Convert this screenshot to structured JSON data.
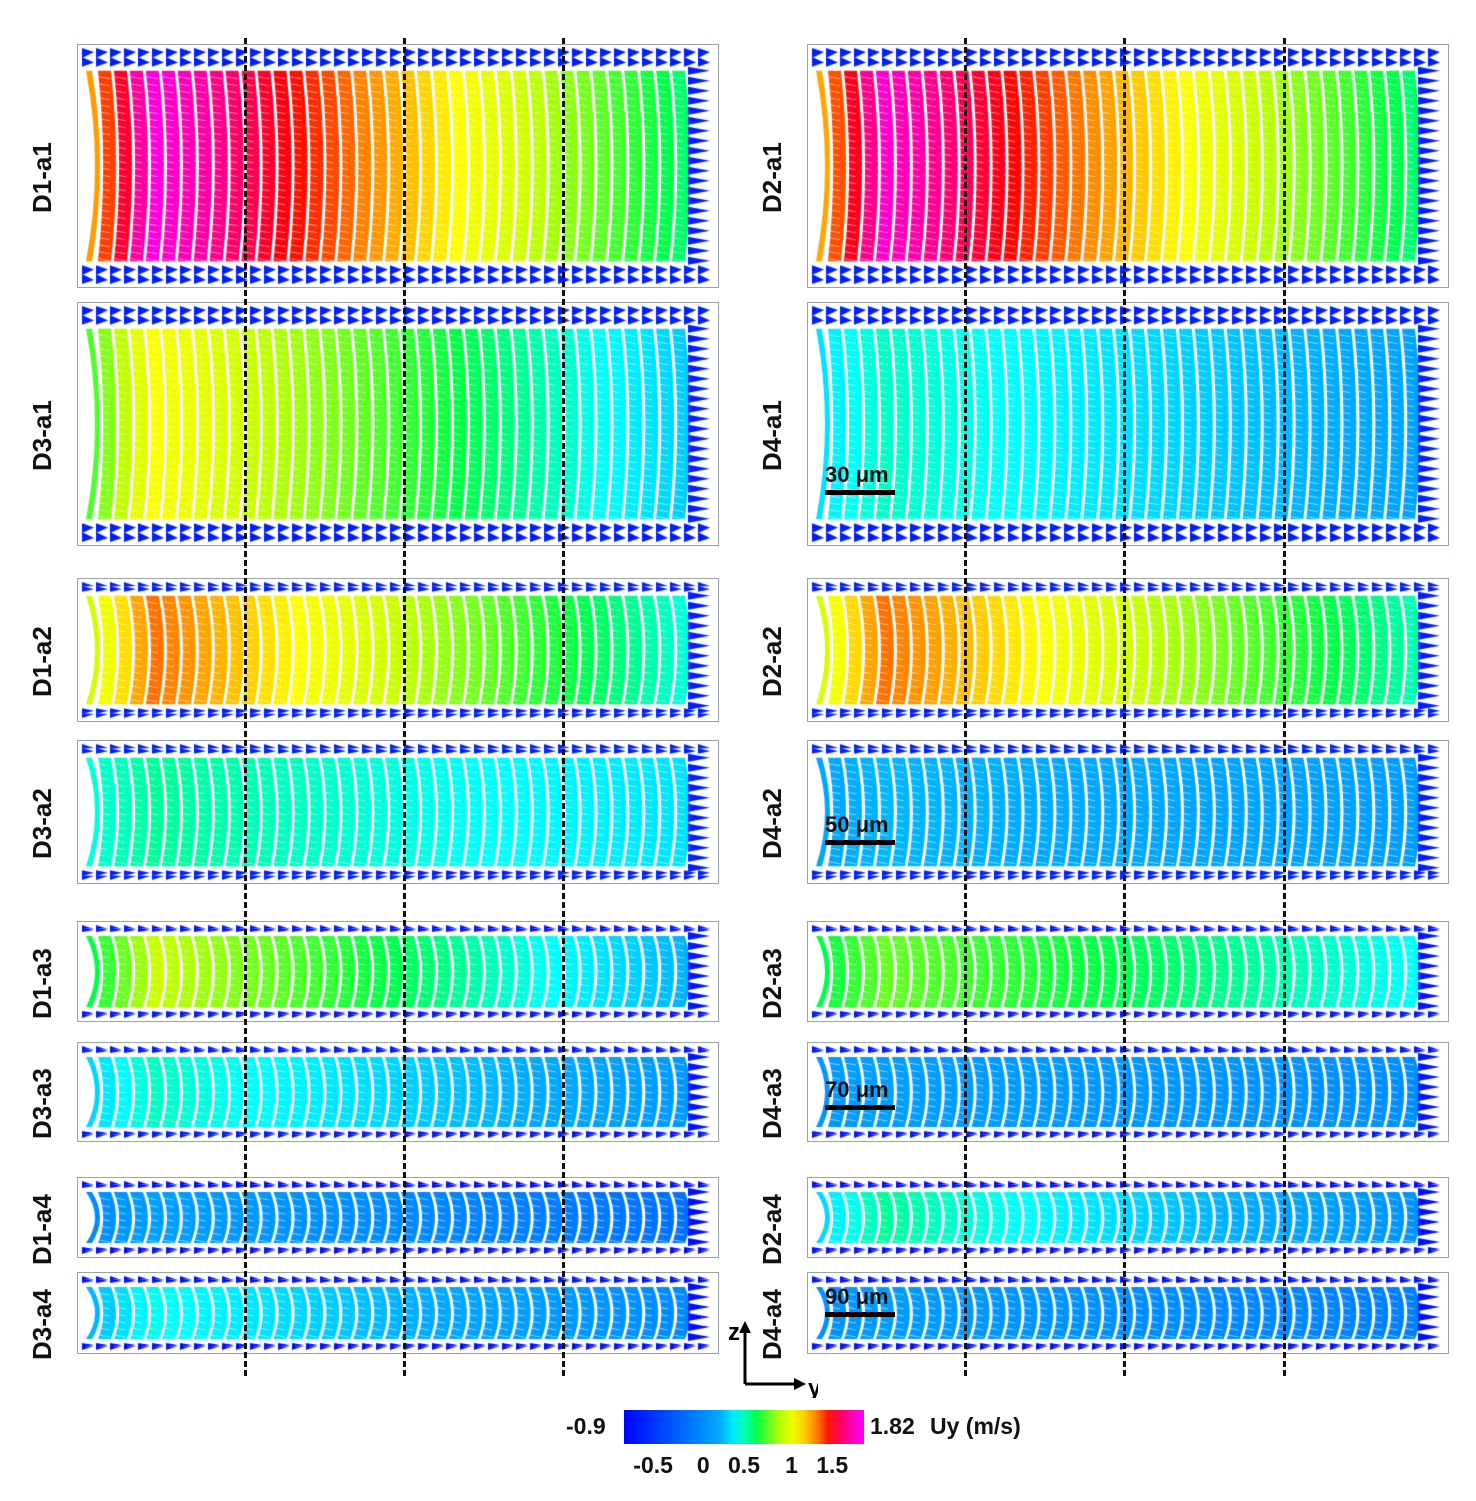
{
  "chart_data": {
    "type": "heatmap",
    "title": "",
    "colorbar": {
      "min": -0.9,
      "max": 1.82,
      "min_label": "-0.9",
      "max_label": "1.82",
      "quantity_label": "Uy (m/s)",
      "ticks": [
        -0.5,
        0,
        0.5,
        1,
        1.5
      ],
      "tick_labels": [
        "-0.5",
        "0",
        "0.5",
        "1",
        "1.5"
      ],
      "colors": [
        "#0000ff",
        "#00ffff",
        "#00ff00",
        "#ffff00",
        "#ff0000",
        "#ff00ff"
      ]
    },
    "axes": {
      "vertical": "z",
      "horizontal": "y"
    },
    "panels": [
      {
        "id": "D1-a1",
        "label": "D1-a1",
        "core_max": 1.75,
        "core_min": 0.45,
        "edge": -0.7
      },
      {
        "id": "D2-a1",
        "label": "D2-a1",
        "core_max": 1.72,
        "core_min": 0.45,
        "edge": -0.7
      },
      {
        "id": "D3-a1",
        "label": "D3-a1",
        "core_max": 1.05,
        "core_min": 0.2,
        "edge": -0.7
      },
      {
        "id": "D4-a1",
        "label": "D4-a1",
        "core_max": 0.45,
        "core_min": 0.12,
        "edge": -0.7
      },
      {
        "id": "D1-a2",
        "label": "D1-a2",
        "core_max": 1.3,
        "core_min": 0.35,
        "edge": -0.7
      },
      {
        "id": "D2-a2",
        "label": "D2-a2",
        "core_max": 1.3,
        "core_min": 0.4,
        "edge": -0.7
      },
      {
        "id": "D3-a2",
        "label": "D3-a2",
        "core_max": 0.5,
        "core_min": 0.3,
        "edge": -0.7
      },
      {
        "id": "D4-a2",
        "label": "D4-a2",
        "core_max": 0.22,
        "core_min": 0.1,
        "edge": -0.7
      },
      {
        "id": "D1-a3",
        "label": "D1-a3",
        "core_max": 0.9,
        "core_min": 0.15,
        "edge": -0.75
      },
      {
        "id": "D2-a3",
        "label": "D2-a3",
        "core_max": 0.75,
        "core_min": 0.35,
        "edge": -0.75
      },
      {
        "id": "D3-a3",
        "label": "D3-a3",
        "core_max": 0.45,
        "core_min": 0.05,
        "edge": -0.75
      },
      {
        "id": "D4-a3",
        "label": "D4-a3",
        "core_max": 0.12,
        "core_min": 0.0,
        "edge": -0.75
      },
      {
        "id": "D1-a4",
        "label": "D1-a4",
        "core_max": 0.12,
        "core_min": -0.2,
        "edge": -0.8
      },
      {
        "id": "D2-a4",
        "label": "D2-a4",
        "core_max": 0.5,
        "core_min": 0.0,
        "edge": -0.8
      },
      {
        "id": "D3-a4",
        "label": "D3-a4",
        "core_max": 0.4,
        "core_min": -0.05,
        "edge": -0.8
      },
      {
        "id": "D4-a4",
        "label": "D4-a4",
        "core_max": 0.1,
        "core_min": -0.1,
        "edge": -0.8
      }
    ],
    "scale_bars": [
      {
        "label": "30 μm",
        "row": "a1"
      },
      {
        "label": "50 μm",
        "row": "a2"
      },
      {
        "label": "70 μm",
        "row": "a3"
      },
      {
        "label": "90 μm",
        "row": "a4"
      }
    ]
  }
}
